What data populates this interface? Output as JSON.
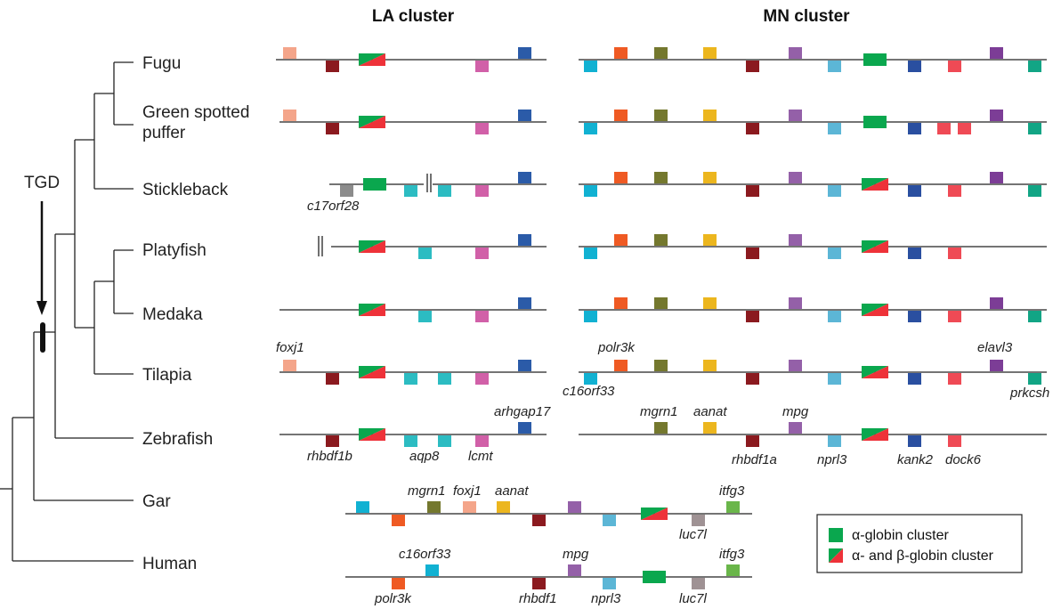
{
  "titles": {
    "la": "LA cluster",
    "mn": "MN cluster"
  },
  "tgd_label": "TGD",
  "species": [
    "Fugu",
    "Green spotted puffer",
    "Stickleback",
    "Platyfish",
    "Medaka",
    "Tilapia",
    "Zebrafish",
    "Gar",
    "Human"
  ],
  "gene_labels": {
    "foxj1": "foxj1",
    "rhbdf1b": "rhbdf1b",
    "aqp8": "aqp8",
    "lcmt": "lcmt",
    "arhgap17": "arhgap17",
    "c17orf28": "c17orf28",
    "polr3k": "polr3k",
    "c16orf33": "c16orf33",
    "elavl3": "elavl3",
    "prkcsh": "prkcsh",
    "mgrn1": "mgrn1",
    "aanat": "aanat",
    "mpg": "mpg",
    "rhbdf1a": "rhbdf1a",
    "nprl3": "nprl3",
    "kank2": "kank2",
    "dock6": "dock6",
    "itfg3": "itfg3",
    "luc7l": "luc7l",
    "rhbdf1": "rhbdf1"
  },
  "legend": {
    "alpha": "α-globin cluster",
    "alpha_beta": "α- and β-globin cluster"
  },
  "colors": {
    "foxj1": "#f4a58a",
    "rhbdf1": "#8b1a1f",
    "globin_green": "#0aa74e",
    "globin_red": "#ee3239",
    "aqp8": "#2cbcc2",
    "lcmt": "#d160a8",
    "arhgap17": "#2b5ba8",
    "c17orf28": "#8c8c8c",
    "c16orf33": "#11b1d2",
    "polr3k": "#ef5a23",
    "mgrn1": "#74782e",
    "aanat": "#ecb61e",
    "mpg": "#9460a8",
    "nprl3": "#5cb6d6",
    "kank2": "#2a4fa0",
    "dock6": "#ef4a55",
    "elavl3": "#7c3d96",
    "prkcsh": "#12a585",
    "luc7l": "#9f9294",
    "itfg3": "#6ab64a"
  }
}
